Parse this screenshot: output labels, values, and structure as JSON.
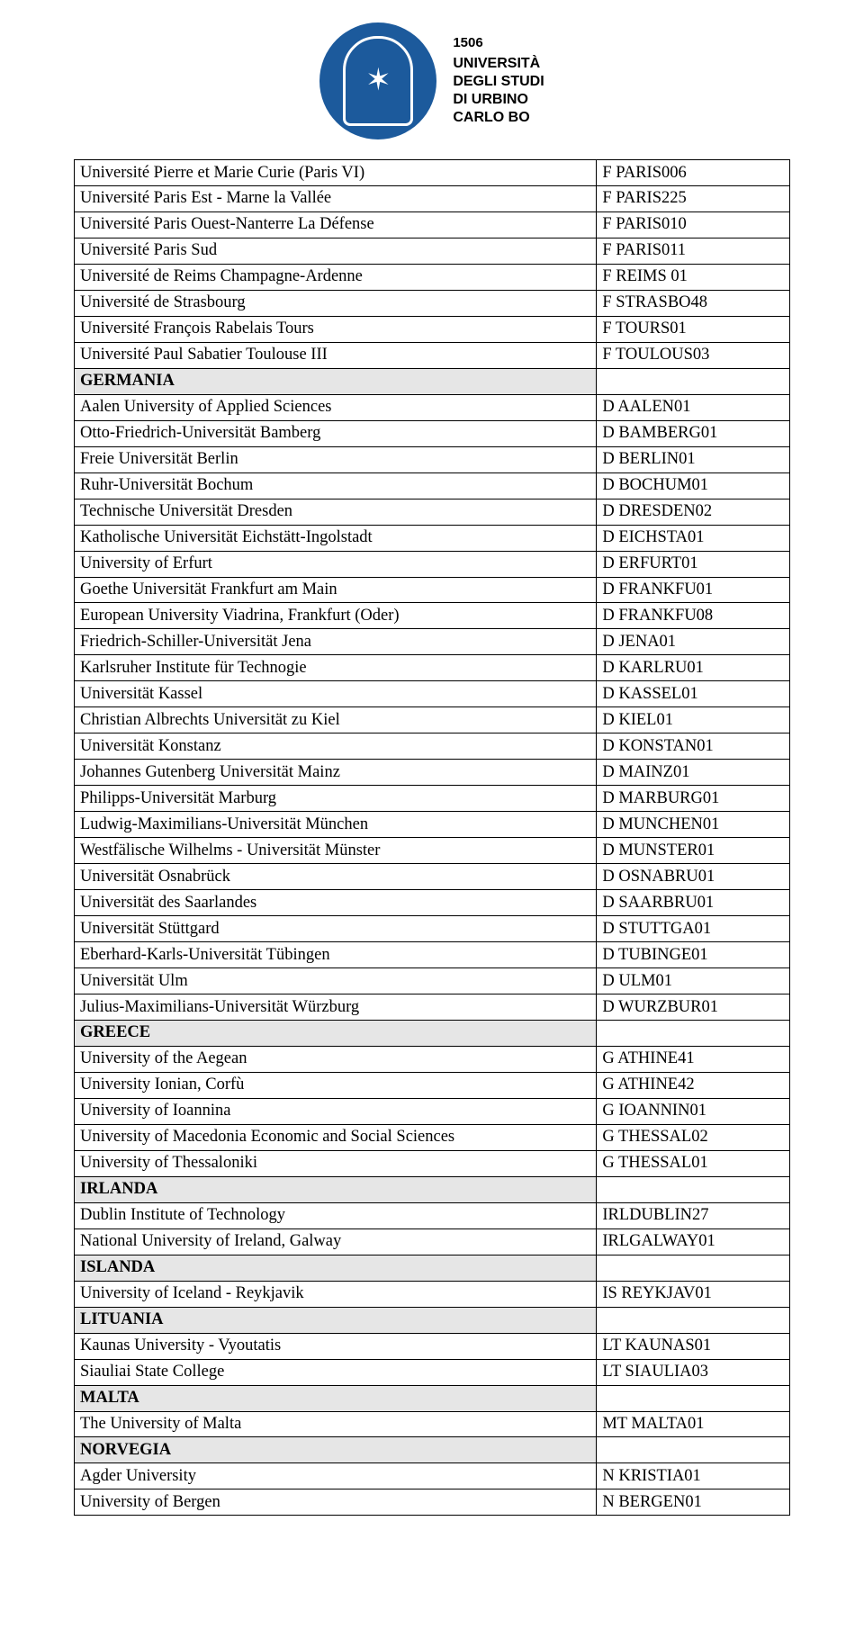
{
  "header": {
    "year": "1506",
    "line1": "UNIVERSITÀ",
    "line2": "DEGLI STUDI",
    "line3": "DI URBINO",
    "line4": "CARLO BO"
  },
  "rows": [
    {
      "type": "row",
      "name": "Université Pierre et Marie Curie (Paris VI)",
      "code": "F PARIS006"
    },
    {
      "type": "row",
      "name": "Université Paris Est - Marne la Vallée",
      "code": "F PARIS225"
    },
    {
      "type": "row",
      "name": "Université Paris Ouest-Nanterre La Défense",
      "code": "F PARIS010"
    },
    {
      "type": "row",
      "name": "Université Paris Sud",
      "code": "F PARIS011"
    },
    {
      "type": "row",
      "name": "Université de Reims Champagne-Ardenne",
      "code": "F REIMS 01"
    },
    {
      "type": "row",
      "name": "Université de Strasbourg",
      "code": "F STRASBO48"
    },
    {
      "type": "row",
      "name": "Université François Rabelais Tours",
      "code": "F TOURS01"
    },
    {
      "type": "row",
      "name": "Université Paul Sabatier Toulouse III",
      "code": "F TOULOUS03"
    },
    {
      "type": "section",
      "name": "GERMANIA",
      "code": ""
    },
    {
      "type": "row",
      "name": "Aalen University of Applied Sciences",
      "code": "D AALEN01"
    },
    {
      "type": "row",
      "name": "Otto-Friedrich-Universität Bamberg",
      "code": "D BAMBERG01"
    },
    {
      "type": "row",
      "name": "Freie Universität Berlin",
      "code": "D BERLIN01"
    },
    {
      "type": "row",
      "name": "Ruhr-Universität Bochum",
      "code": "D BOCHUM01"
    },
    {
      "type": "row",
      "name": "Technische Universität Dresden",
      "code": "D DRESDEN02"
    },
    {
      "type": "row",
      "name": "Katholische Universität Eichstätt-Ingolstadt",
      "code": "D EICHSTA01"
    },
    {
      "type": "row",
      "name": "University of Erfurt",
      "code": "D ERFURT01"
    },
    {
      "type": "row",
      "name": "Goethe Universität Frankfurt am Main",
      "code": "D FRANKFU01"
    },
    {
      "type": "row",
      "name": "European University Viadrina, Frankfurt (Oder)",
      "code": "D FRANKFU08"
    },
    {
      "type": "row",
      "name": "Friedrich-Schiller-Universität Jena",
      "code": "D JENA01"
    },
    {
      "type": "row",
      "name": "Karlsruher Institute für Technogie",
      "code": "D KARLRU01"
    },
    {
      "type": "row",
      "name": "Universität Kassel",
      "code": "D KASSEL01"
    },
    {
      "type": "row",
      "name": "Christian Albrechts Universität zu Kiel",
      "code": "D KIEL01"
    },
    {
      "type": "row",
      "name": "Universität Konstanz",
      "code": "D KONSTAN01"
    },
    {
      "type": "row",
      "name": "Johannes Gutenberg Universität Mainz",
      "code": "D MAINZ01"
    },
    {
      "type": "row",
      "name": "Philipps-Universität Marburg",
      "code": "D MARBURG01"
    },
    {
      "type": "row",
      "name": "Ludwig-Maximilians-Universität München",
      "code": "D MUNCHEN01"
    },
    {
      "type": "row",
      "name": "Westfälische Wilhelms - Universität Münster",
      "code": "D MUNSTER01"
    },
    {
      "type": "row",
      "name": "Universität Osnabrück",
      "code": "D OSNABRU01"
    },
    {
      "type": "row",
      "name": "Universität des Saarlandes",
      "code": "D SAARBRU01"
    },
    {
      "type": "row",
      "name": "Universität Stüttgard",
      "code": "D STUTTGA01"
    },
    {
      "type": "row",
      "name": "Eberhard-Karls-Universität Tübingen",
      "code": "D TUBINGE01"
    },
    {
      "type": "row",
      "name": "Universität Ulm",
      "code": "D ULM01"
    },
    {
      "type": "row",
      "name": "Julius-Maximilians-Universität Würzburg",
      "code": "D WURZBUR01"
    },
    {
      "type": "section",
      "name": "GREECE",
      "code": ""
    },
    {
      "type": "row",
      "name": "University of the Aegean",
      "code": "G ATHINE41"
    },
    {
      "type": "row",
      "name": "University Ionian, Corfù",
      "code": "G ATHINE42"
    },
    {
      "type": "row",
      "name": "University of Ioannina",
      "code": "G IOANNIN01"
    },
    {
      "type": "row",
      "name": "University of Macedonia Economic and Social Sciences",
      "code": "G THESSAL02"
    },
    {
      "type": "row",
      "name": "University of Thessaloniki",
      "code": "G THESSAL01"
    },
    {
      "type": "section",
      "name": "IRLANDA",
      "code": ""
    },
    {
      "type": "row",
      "name": "Dublin Institute of Technology",
      "code": "IRLDUBLIN27"
    },
    {
      "type": "row",
      "name": "National University of Ireland, Galway",
      "code": "IRLGALWAY01"
    },
    {
      "type": "section",
      "name": "ISLANDA",
      "code": ""
    },
    {
      "type": "row",
      "name": "University of Iceland - Reykjavik",
      "code": "IS REYKJAV01"
    },
    {
      "type": "section",
      "name": "LITUANIA",
      "code": ""
    },
    {
      "type": "row",
      "name": "Kaunas University - Vyoutatis",
      "code": "LT KAUNAS01"
    },
    {
      "type": "row",
      "name": "Siauliai State College",
      "code": "LT SIAULIA03"
    },
    {
      "type": "section",
      "name": "MALTA",
      "code": ""
    },
    {
      "type": "row",
      "name": "The University of Malta",
      "code": "MT MALTA01"
    },
    {
      "type": "section",
      "name": "NORVEGIA",
      "code": ""
    },
    {
      "type": "row",
      "name": "Agder University",
      "code": "N KRISTIA01"
    },
    {
      "type": "row",
      "name": "University of Bergen",
      "code": "N BERGEN01"
    }
  ]
}
